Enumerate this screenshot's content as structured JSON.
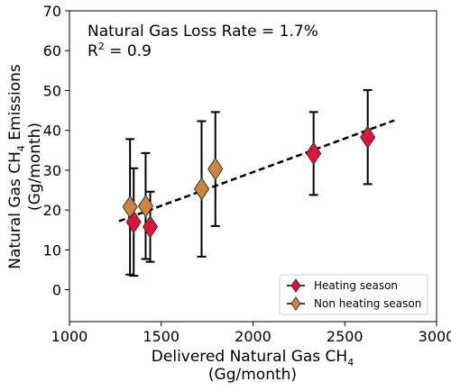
{
  "chart_data": {
    "type": "scatter",
    "x_label": {
      "line1": [
        "Delivered Natural Gas CH",
        "4"
      ],
      "line2": "(Gg/month)"
    },
    "y_label": {
      "line1": [
        "Natural Gas CH",
        "4",
        " Emissions"
      ],
      "line2": "(Gg/month)"
    },
    "annotations": {
      "loss_rate": "Natural Gas Loss Rate = 1.7%",
      "r2": {
        "base": "R",
        "sup": "2",
        "rest": " = 0.9"
      }
    },
    "xlim": [
      1000,
      3000
    ],
    "ylim": [
      -8,
      70
    ],
    "xticks": [
      1000,
      1500,
      2000,
      2500,
      3000
    ],
    "yticks": [
      0,
      10,
      20,
      30,
      40,
      50,
      60,
      70
    ],
    "legend": "lower right",
    "series": [
      {
        "name": "Heating season",
        "color": "#dc143c",
        "x": [
          1350,
          1440,
          2330,
          2625
        ],
        "values": [
          17,
          15.8,
          34.2,
          38.3
        ],
        "errors": [
          13.5,
          8.8,
          10.4,
          11.8
        ]
      },
      {
        "name": "Non heating season",
        "color": "#cd853f",
        "x": [
          1330,
          1415,
          1720,
          1795
        ],
        "values": [
          20.8,
          21,
          25.3,
          30.3
        ],
        "errors": [
          17,
          13.3,
          17,
          14.3
        ]
      }
    ],
    "fit_line": {
      "x": [
        1270,
        2770
      ],
      "y": [
        17.2,
        42.5
      ]
    }
  }
}
